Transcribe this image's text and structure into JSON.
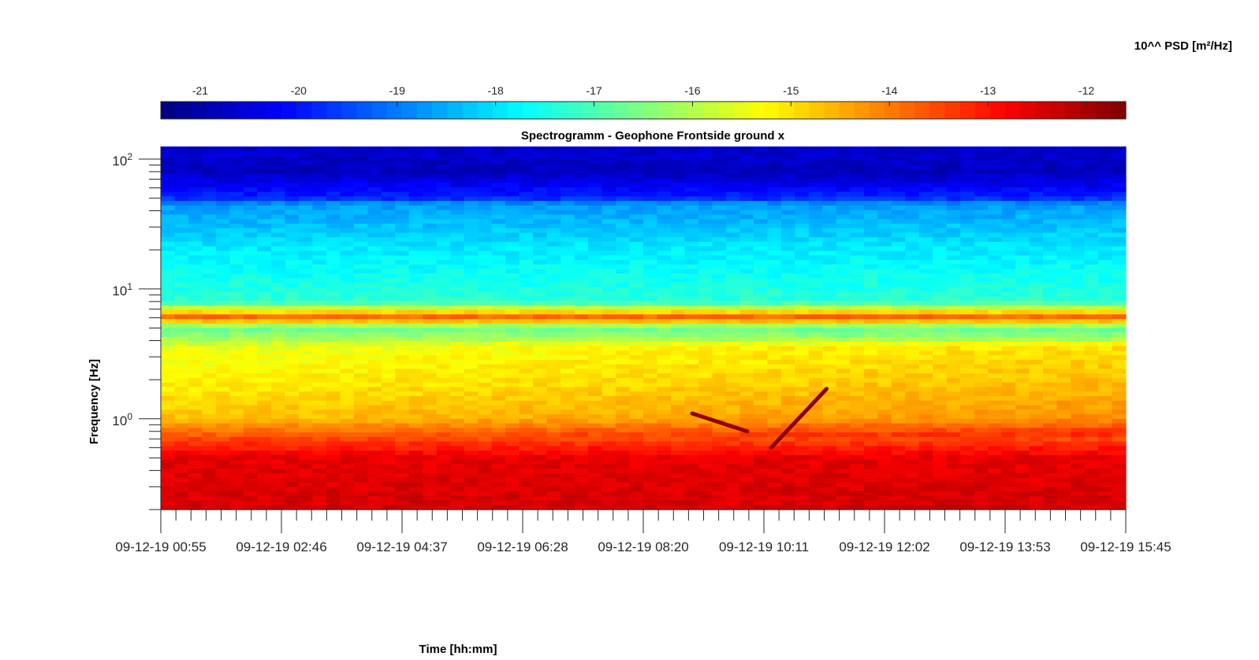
{
  "chart_data": {
    "type": "heatmap",
    "title": "Spectrogramm - Geophone Frontside ground x",
    "xlabel": "Time [hh:mm]",
    "ylabel": "Frequency [Hz]",
    "colorbar_label": "10^^ PSD [m²/Hz]",
    "colormap": "jet",
    "colormap_colors": [
      "#00008f",
      "#0000ff",
      "#0080ff",
      "#00ffff",
      "#80ff80",
      "#ffff00",
      "#ff8000",
      "#ff0000",
      "#800000"
    ],
    "y_scale": "log",
    "ylim": [
      0.2,
      125
    ],
    "y_major_ticks": [
      {
        "value": 1,
        "base": "10",
        "exp": "0"
      },
      {
        "value": 10,
        "base": "10",
        "exp": "1"
      },
      {
        "value": 100,
        "base": "10",
        "exp": "2"
      }
    ],
    "x_tick_labels": [
      "09-12-19 00:55",
      "09-12-19 02:46",
      "09-12-19 04:37",
      "09-12-19 06:28",
      "09-12-19 08:20",
      "09-12-19 10:11",
      "09-12-19 12:02",
      "09-12-19 13:53",
      "09-12-19 15:45"
    ],
    "x_minor_per_major": 8,
    "color_range": [
      -21.4,
      -11.6
    ],
    "colorbar_ticks": [
      "-21",
      "-20",
      "-19",
      "-18",
      "-17",
      "-16",
      "-15",
      "-14",
      "-13",
      "-12"
    ],
    "colorbar_tick_values": [
      -21,
      -20,
      -19,
      -18,
      -17,
      -16,
      -15,
      -14,
      -13,
      -12
    ],
    "colorbar_bands": 64,
    "psd_profile": [
      {
        "freq": 0.2,
        "log_psd": -12.4
      },
      {
        "freq": 0.5,
        "log_psd": -12.6
      },
      {
        "freq": 0.7,
        "log_psd": -13.5
      },
      {
        "freq": 1.0,
        "log_psd": -14.7
      },
      {
        "freq": 2.0,
        "log_psd": -15.2
      },
      {
        "freq": 3.5,
        "log_psd": -15.5
      },
      {
        "freq": 5.0,
        "log_psd": -16.8
      },
      {
        "freq": 6.0,
        "log_psd": -13.6
      },
      {
        "freq": 8.0,
        "log_psd": -17.3
      },
      {
        "freq": 20.0,
        "log_psd": -17.9
      },
      {
        "freq": 45.0,
        "log_psd": -18.7
      },
      {
        "freq": 50.0,
        "log_psd": -19.8
      },
      {
        "freq": 80.0,
        "log_psd": -20.8
      },
      {
        "freq": 125.0,
        "log_psd": -20.6
      }
    ],
    "annotations": [
      {
        "type": "trace",
        "time": [
          "09-12-19 09:05",
          "09-12-19 09:56"
        ],
        "freq": [
          1.1,
          0.8
        ],
        "log_psd": -11.8
      },
      {
        "type": "trace",
        "time": [
          "09-12-19 10:18",
          "09-12-19 11:09"
        ],
        "freq": [
          0.6,
          1.7
        ],
        "log_psd": -11.7
      }
    ]
  }
}
